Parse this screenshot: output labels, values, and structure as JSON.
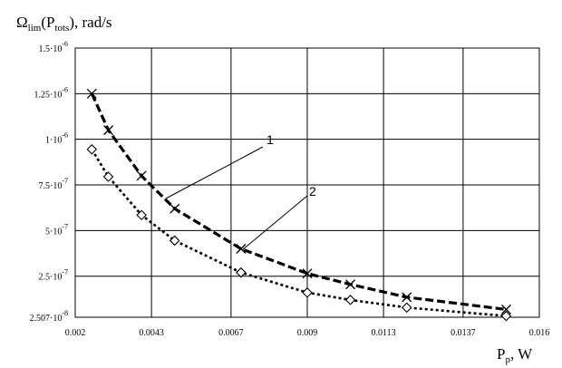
{
  "chart_data": {
    "type": "line",
    "ylabel_main": "Ω",
    "ylabel_sub": "lim",
    "ylabel_rest": "(P",
    "ylabel_sub2": "tots",
    "ylabel_tail": "), rad/s",
    "xlabel_main": "P",
    "xlabel_sub": "p",
    "xlabel_unit": ", W",
    "xlim": [
      0.002,
      0.016
    ],
    "ylim": [
      2.507e-08,
      1.5e-06
    ],
    "y_tick_values": [
      2.507e-08,
      2.5e-07,
      5e-07,
      7.5e-07,
      1e-06,
      1.25e-06,
      1.5e-06
    ],
    "y_ticks": [
      {
        "mant": "2.507·10",
        "exp": "-8"
      },
      {
        "mant": "2.5·10",
        "exp": "-7"
      },
      {
        "mant": "5·10",
        "exp": "-7"
      },
      {
        "mant": "7.5·10",
        "exp": "-7"
      },
      {
        "mant": "1·10",
        "exp": "-6"
      },
      {
        "mant": "1.25·10",
        "exp": "-6"
      },
      {
        "mant": "1.5·10",
        "exp": "-6"
      }
    ],
    "x_tick_values": [
      0.002,
      0.0043,
      0.0067,
      0.009,
      0.0113,
      0.0137,
      0.016
    ],
    "x_ticks": [
      "0.002",
      "0.0043",
      "0.0067",
      "0.009",
      "0.0113",
      "0.0137",
      "0.016"
    ],
    "grid": true,
    "series": [
      {
        "name": "1",
        "color": "#000000",
        "marker": "x",
        "style": "dashed",
        "points": [
          [
            0.0025,
            1.25e-06
          ],
          [
            0.003,
            1.05e-06
          ],
          [
            0.004,
            8e-07
          ],
          [
            0.005,
            6.2e-07
          ],
          [
            0.007,
            4e-07
          ],
          [
            0.009,
            2.65e-07
          ],
          [
            0.0103,
            2.05e-07
          ],
          [
            0.012,
            1.35e-07
          ],
          [
            0.015,
            6.8e-08
          ]
        ]
      },
      {
        "name": "2",
        "color": "#000000",
        "marker": "diamond",
        "style": "dotted",
        "points": [
          [
            0.0025,
            9.45e-07
          ],
          [
            0.003,
            7.95e-07
          ],
          [
            0.004,
            5.85e-07
          ],
          [
            0.005,
            4.45e-07
          ],
          [
            0.007,
            2.7e-07
          ],
          [
            0.009,
            1.6e-07
          ],
          [
            0.0103,
            1.2e-07
          ],
          [
            0.012,
            7.8e-08
          ],
          [
            0.015,
            3.2e-08
          ]
        ]
      }
    ],
    "annotations": [
      "1",
      "2"
    ]
  }
}
